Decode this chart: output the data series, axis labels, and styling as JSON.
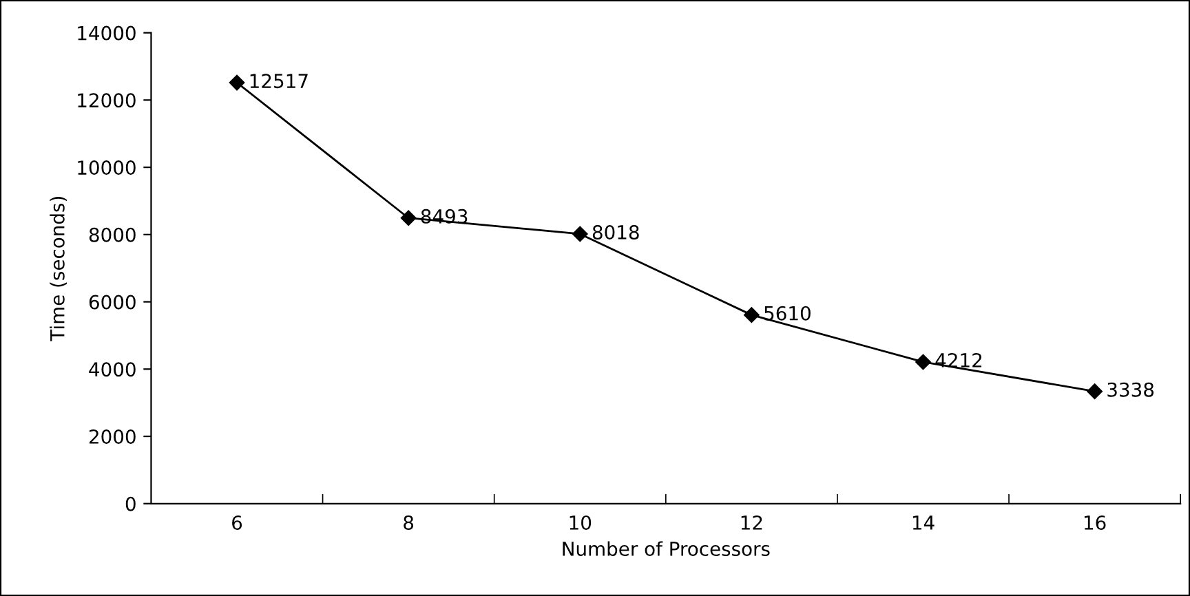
{
  "chart_data": {
    "type": "line",
    "xlabel": "Number of Processors",
    "ylabel": "Time (seconds)",
    "categories": [
      "6",
      "8",
      "10",
      "12",
      "14",
      "16"
    ],
    "series": [
      {
        "color": "#000000",
        "values": [
          12517,
          8493,
          8018,
          5610,
          4212,
          3338
        ]
      }
    ],
    "ylim": [
      0,
      14000
    ],
    "yticks": [
      0,
      2000,
      4000,
      6000,
      8000,
      10000,
      12000,
      14000
    ],
    "data_labels": true,
    "marker": "diamond",
    "line_style": "solid",
    "grid": false,
    "legend": false
  }
}
